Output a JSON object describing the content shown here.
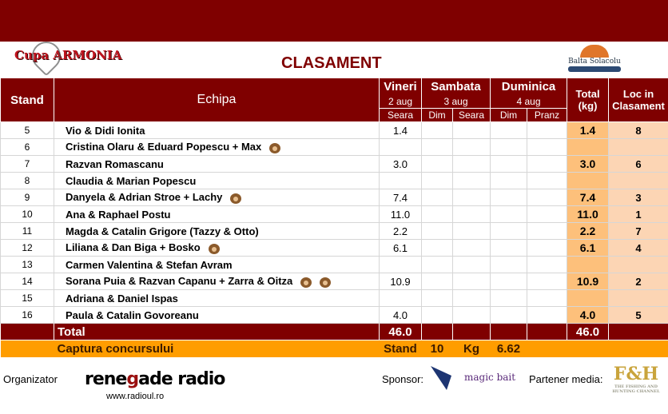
{
  "header": {
    "title": "CLASAMENT",
    "logo_left": "Cupa ARMONIA",
    "logo_right": "Balta Solacolu"
  },
  "columns": {
    "stand": "Stand",
    "team": "Echipa",
    "vineri": "Vineri",
    "vineri_date": "2 aug",
    "sambata": "Sambata",
    "sambata_date": "3 aug",
    "duminica": "Duminica",
    "duminica_date": "4 aug",
    "seara": "Seara",
    "dim": "Dim",
    "pranz": "Pranz",
    "total": "Total (kg)",
    "loc": "Loc in Clasament"
  },
  "rows": [
    {
      "stand": "5",
      "team": "Vio & Didi Ionita",
      "dogs": 0,
      "vineri": "1.4",
      "total": "1.4",
      "loc": "8"
    },
    {
      "stand": "6",
      "team": "Cristina Olaru & Eduard Popescu + Max",
      "dogs": 1,
      "vineri": "",
      "total": "",
      "loc": ""
    },
    {
      "stand": "7",
      "team": "Razvan Romascanu",
      "dogs": 0,
      "vineri": "3.0",
      "total": "3.0",
      "loc": "6"
    },
    {
      "stand": "8",
      "team": "Claudia & Marian Popescu",
      "dogs": 0,
      "vineri": "",
      "total": "",
      "loc": ""
    },
    {
      "stand": "9",
      "team": "Danyela & Adrian Stroe + Lachy",
      "dogs": 1,
      "vineri": "7.4",
      "total": "7.4",
      "loc": "3"
    },
    {
      "stand": "10",
      "team": "Ana & Raphael Postu",
      "dogs": 0,
      "vineri": "11.0",
      "total": "11.0",
      "loc": "1"
    },
    {
      "stand": "11",
      "team": "Magda & Catalin Grigore (Tazzy & Otto)",
      "dogs": 0,
      "vineri": "2.2",
      "total": "2.2",
      "loc": "7"
    },
    {
      "stand": "12",
      "team": "Liliana & Dan Biga + Bosko",
      "dogs": 1,
      "vineri": "6.1",
      "total": "6.1",
      "loc": "4"
    },
    {
      "stand": "13",
      "team": "Carmen Valentina & Stefan Avram",
      "dogs": 0,
      "vineri": "",
      "total": "",
      "loc": ""
    },
    {
      "stand": "14",
      "team": "Sorana Puia & Razvan Capanu + Zarra & Oitza",
      "dogs": 2,
      "vineri": "10.9",
      "total": "10.9",
      "loc": "2"
    },
    {
      "stand": "15",
      "team": "Adriana & Daniel Ispas",
      "dogs": 0,
      "vineri": "",
      "total": "",
      "loc": ""
    },
    {
      "stand": "16",
      "team": "Paula & Catalin Govoreanu",
      "dogs": 0,
      "vineri": "4.0",
      "total": "4.0",
      "loc": "5"
    }
  ],
  "total_row": {
    "label": "Total",
    "vineri": "46.0",
    "total": "46.0"
  },
  "capture": {
    "label": "Captura concursului",
    "stand_label": "Stand",
    "stand": "10",
    "kg_label": "Kg",
    "kg": "6.62"
  },
  "footer": {
    "organizer_label": "Organizator",
    "organizer": "renegade radio",
    "organizer_url": "www.radioul.ro",
    "sponsor_label": "Sponsor:",
    "sponsor": "magic bait",
    "media_label": "Partener media:",
    "media": "F&H"
  }
}
